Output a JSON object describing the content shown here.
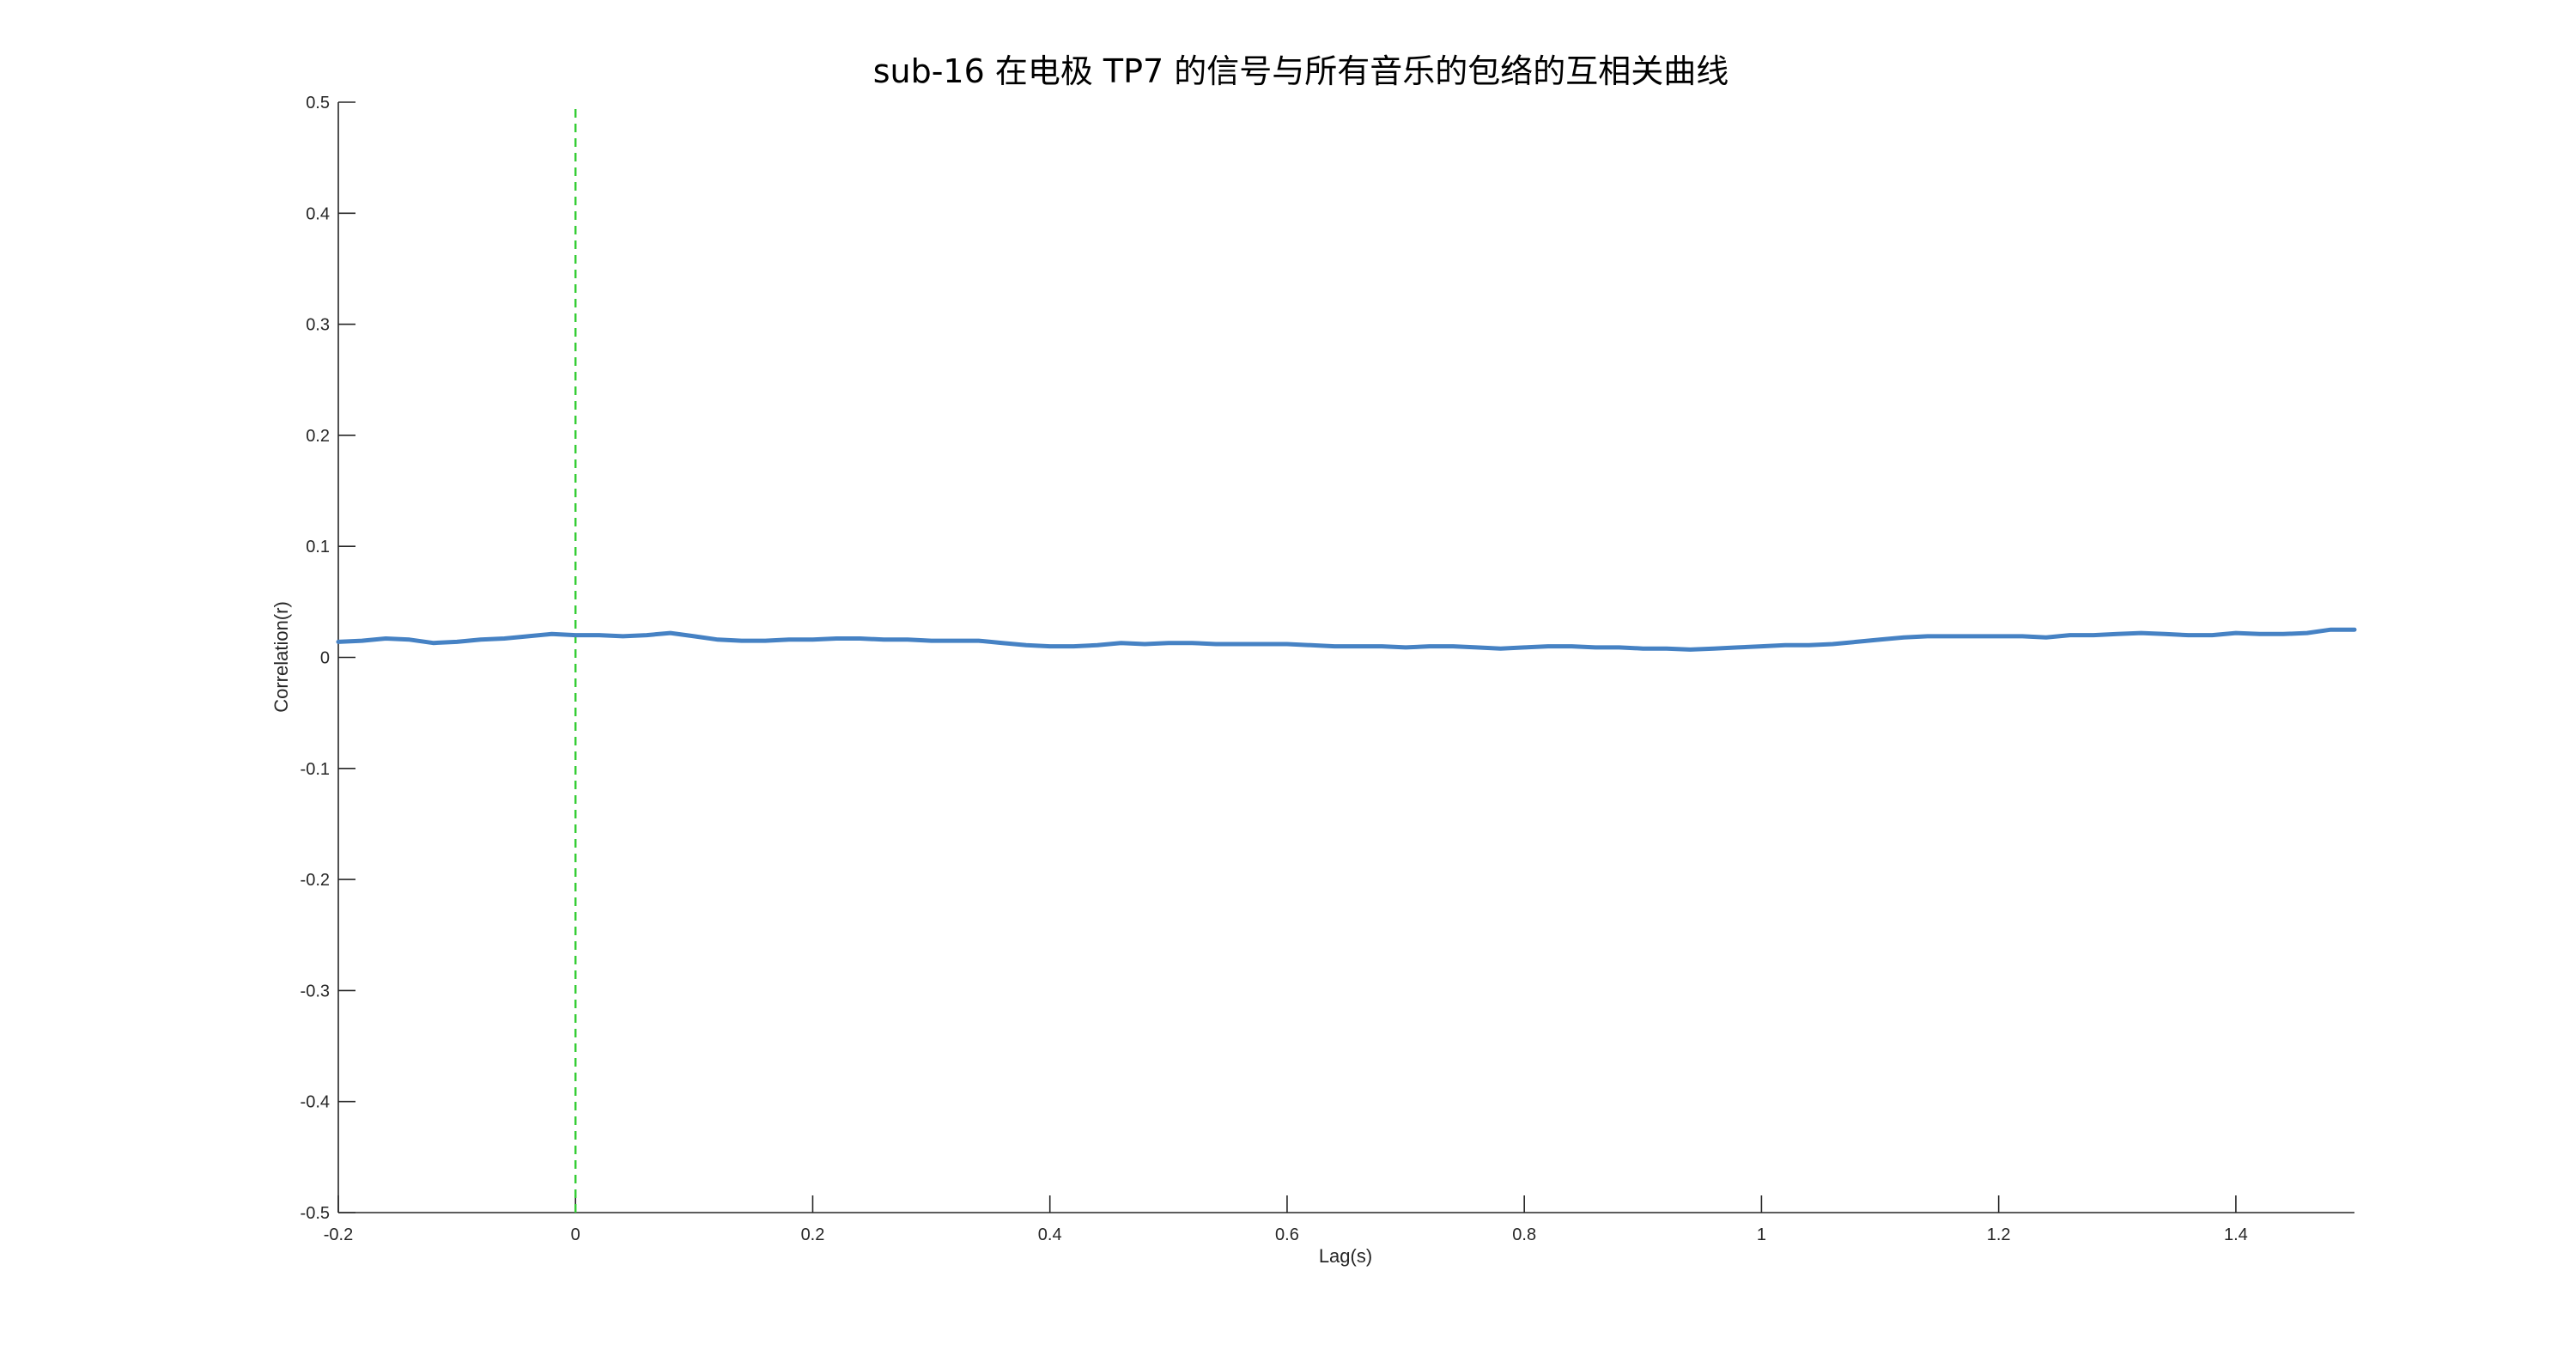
{
  "chart_data": {
    "type": "line",
    "title": "sub-16 在电极 TP7 的信号与所有音乐的包络的互相关曲线",
    "xlabel": "Lag(s)",
    "ylabel": "Correlation(r)",
    "xlim": [
      -0.2,
      1.5
    ],
    "ylim": [
      -0.5,
      0.5
    ],
    "xticks": [
      -0.2,
      0,
      0.2,
      0.4,
      0.6,
      0.8,
      1,
      1.2,
      1.4
    ],
    "xtick_labels": [
      "-0.2",
      "0",
      "0.2",
      "0.4",
      "0.6",
      "0.8",
      "1",
      "1.2",
      "1.4"
    ],
    "yticks": [
      -0.5,
      -0.4,
      -0.3,
      -0.2,
      -0.1,
      0,
      0.1,
      0.2,
      0.3,
      0.4,
      0.5
    ],
    "ytick_labels": [
      "-0.5",
      "-0.4",
      "-0.3",
      "-0.2",
      "-0.1",
      "0",
      "0.1",
      "0.2",
      "0.3",
      "0.4",
      "0.5"
    ],
    "grid": false,
    "series": [
      {
        "color": "#4682c4",
        "x": [
          -0.2,
          -0.18,
          -0.16,
          -0.14,
          -0.12,
          -0.1,
          -0.08,
          -0.06,
          -0.04,
          -0.02,
          0,
          0.02,
          0.04,
          0.06,
          0.08,
          0.1,
          0.12,
          0.14,
          0.16,
          0.18,
          0.2,
          0.22,
          0.24,
          0.26,
          0.28,
          0.3,
          0.32,
          0.34,
          0.36,
          0.38,
          0.4,
          0.42,
          0.44,
          0.46,
          0.48,
          0.5,
          0.52,
          0.54,
          0.56,
          0.58,
          0.6,
          0.62,
          0.64,
          0.66,
          0.68,
          0.7,
          0.72,
          0.74,
          0.76,
          0.78,
          0.8,
          0.82,
          0.84,
          0.86,
          0.88,
          0.9,
          0.92,
          0.94,
          0.96,
          0.98,
          1,
          1.02,
          1.04,
          1.06,
          1.08,
          1.1,
          1.12,
          1.14,
          1.16,
          1.18,
          1.2,
          1.22,
          1.24,
          1.26,
          1.28,
          1.3,
          1.32,
          1.34,
          1.36,
          1.38,
          1.4,
          1.42,
          1.44,
          1.46,
          1.48,
          1.5
        ],
        "y": [
          0.014,
          0.015,
          0.017,
          0.016,
          0.013,
          0.014,
          0.016,
          0.017,
          0.019,
          0.021,
          0.02,
          0.02,
          0.019,
          0.02,
          0.022,
          0.019,
          0.016,
          0.015,
          0.015,
          0.016,
          0.016,
          0.017,
          0.017,
          0.016,
          0.016,
          0.015,
          0.015,
          0.015,
          0.013,
          0.011,
          0.01,
          0.01,
          0.011,
          0.013,
          0.012,
          0.013,
          0.013,
          0.012,
          0.012,
          0.012,
          0.012,
          0.011,
          0.01,
          0.01,
          0.01,
          0.009,
          0.01,
          0.01,
          0.009,
          0.008,
          0.009,
          0.01,
          0.01,
          0.009,
          0.009,
          0.008,
          0.008,
          0.007,
          0.008,
          0.009,
          0.01,
          0.011,
          0.011,
          0.012,
          0.014,
          0.016,
          0.018,
          0.019,
          0.019,
          0.019,
          0.019,
          0.019,
          0.018,
          0.02,
          0.02,
          0.021,
          0.022,
          0.021,
          0.02,
          0.02,
          0.022,
          0.021,
          0.021,
          0.022,
          0.025,
          0.025
        ]
      }
    ],
    "reference_lines": [
      {
        "orientation": "vertical",
        "x": 0,
        "style": "dashed",
        "color": "#33cc33"
      }
    ]
  }
}
